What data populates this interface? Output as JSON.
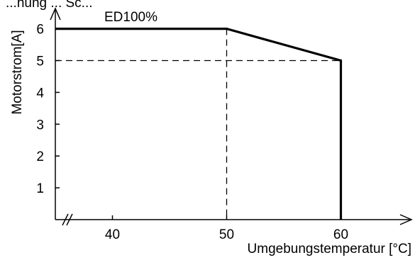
{
  "chart_data": {
    "type": "line",
    "top_text": "...hung ... Sc...",
    "ylabel": "Motorstrom[A]",
    "xlabel": "Umgebungstemperatur [°C]",
    "series": [
      {
        "name": "ED100%",
        "x": [
          35,
          50,
          60,
          60
        ],
        "y": [
          6,
          6,
          5,
          0
        ]
      }
    ],
    "reference_lines": [
      {
        "from": [
          50,
          6
        ],
        "to": [
          50,
          0
        ],
        "style": "dashed"
      },
      {
        "from": [
          35,
          5
        ],
        "to": [
          60,
          5
        ],
        "style": "dashed"
      }
    ],
    "x_ticks": [
      40,
      50,
      60
    ],
    "x_tick_labels": [
      "40",
      "50",
      "60"
    ],
    "y_ticks": [
      1,
      2,
      3,
      4,
      5,
      6
    ],
    "y_tick_labels": [
      "1",
      "2",
      "3",
      "4",
      "5",
      "6"
    ],
    "xlim": [
      35,
      66
    ],
    "ylim": [
      0,
      6.6
    ],
    "x_axis_break": true,
    "grid": false
  }
}
